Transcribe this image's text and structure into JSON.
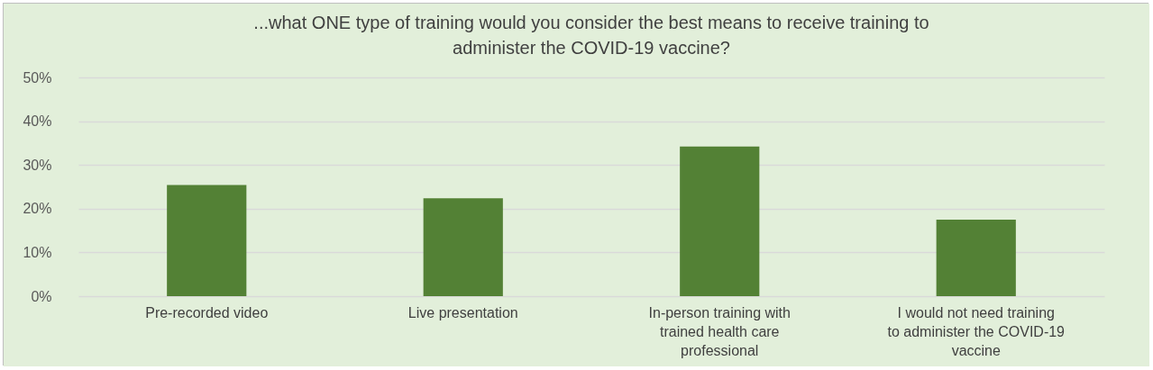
{
  "chart_data": {
    "type": "bar",
    "title": "...what ONE type of training would you consider the best means to receive training to administer the COVID-19 vaccine?",
    "categories": [
      "Pre-recorded video",
      "Live presentation",
      "In-person training with trained health care professional",
      "I would not need training to administer the COVID-19 vaccine"
    ],
    "values": [
      25.4,
      22.4,
      34.2,
      17.5
    ],
    "color": "#538135",
    "ylim": [
      0,
      50
    ],
    "yticks": [
      {
        "value": 0,
        "label": "0%"
      },
      {
        "value": 10,
        "label": "10%"
      },
      {
        "value": 20,
        "label": "20%"
      },
      {
        "value": 30,
        "label": "30%"
      },
      {
        "value": 40,
        "label": "40%"
      },
      {
        "value": 50,
        "label": "50%"
      }
    ],
    "grid": "y"
  }
}
